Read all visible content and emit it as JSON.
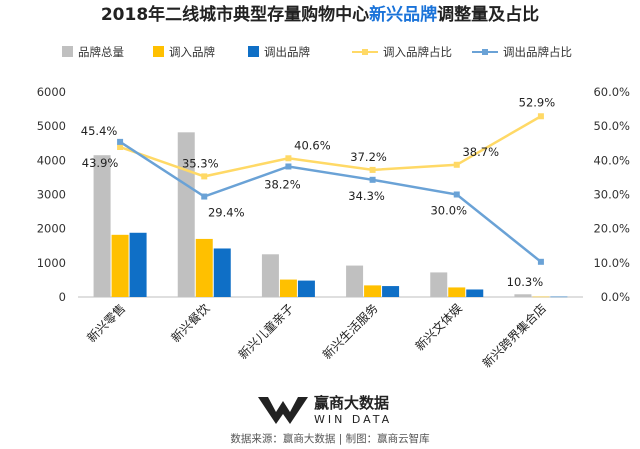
{
  "chart_data": {
    "type": "bar",
    "title": {
      "prefix": "2018年二线城市典型存量购物中心",
      "highlight": "新兴品牌",
      "suffix": "调整量及占比"
    },
    "categories": [
      "新兴零售",
      "新兴餐饮",
      "新兴儿童亲子",
      "新兴生活服务",
      "新兴文体娱",
      "新兴跨界集合店"
    ],
    "series": [
      {
        "name": "品牌总量",
        "type": "bar",
        "axis": "left",
        "color": "#c0c0c0",
        "values": [
          4150,
          4820,
          1250,
          920,
          720,
          80
        ]
      },
      {
        "name": "调入品牌",
        "type": "bar",
        "axis": "left",
        "color": "#ffc000",
        "values": [
          1820,
          1700,
          510,
          340,
          280,
          10
        ]
      },
      {
        "name": "调出品牌",
        "type": "bar",
        "axis": "left",
        "color": "#0f6fc6",
        "values": [
          1880,
          1420,
          480,
          320,
          220,
          10
        ]
      },
      {
        "name": "调入品牌占比",
        "type": "line",
        "axis": "right",
        "color": "#ffd966",
        "values": [
          43.9,
          35.3,
          40.6,
          37.2,
          38.7,
          52.9
        ],
        "labels": [
          "43.9%",
          "35.3%",
          "40.6%",
          "37.2%",
          "38.7%",
          "52.9%"
        ]
      },
      {
        "name": "调出品牌占比",
        "type": "line",
        "axis": "right",
        "color": "#6aa2d6",
        "values": [
          45.4,
          29.4,
          38.2,
          34.3,
          30.0,
          10.3
        ],
        "labels": [
          "45.4%",
          "29.4%",
          "38.2%",
          "34.3%",
          "30.0%",
          "10.3%"
        ]
      }
    ],
    "y_left": {
      "ticks": [
        0,
        1000,
        2000,
        3000,
        4000,
        5000,
        6000
      ],
      "ylim": [
        0,
        6000
      ]
    },
    "y_right": {
      "ticks": [
        0,
        10,
        20,
        30,
        40,
        50,
        60
      ],
      "tick_labels": [
        "0.0%",
        "10.0%",
        "20.0%",
        "30.0%",
        "40.0%",
        "50.0%",
        "60.0%"
      ],
      "ylim": [
        0,
        60
      ]
    },
    "legend_position": "top",
    "grid": false
  },
  "footer": {
    "brand_cn": "赢商大数据",
    "brand_en": "WIN DATA",
    "source": "数据来源：赢商大数据 | 制图：赢商云智库"
  },
  "watermark": "赢商云智库"
}
